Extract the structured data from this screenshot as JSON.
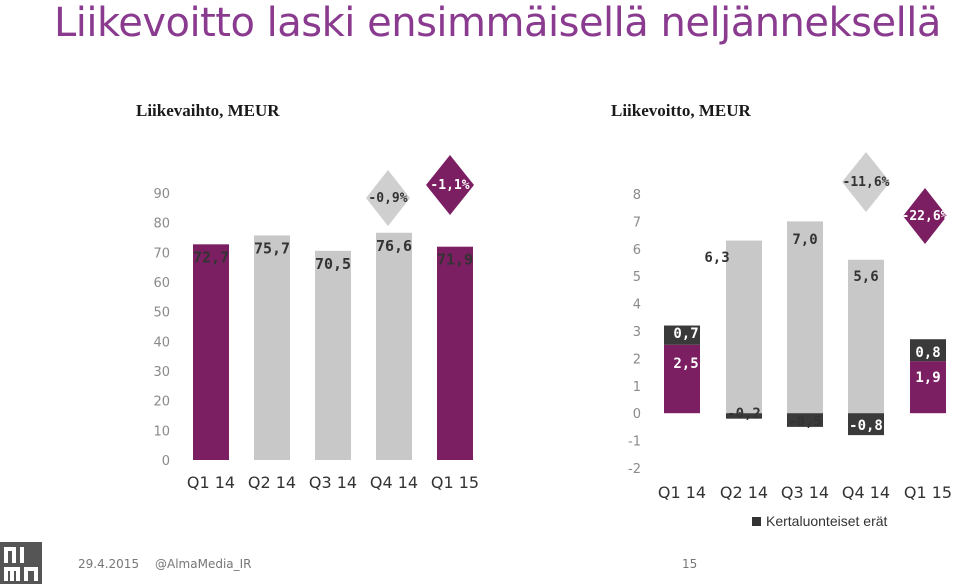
{
  "title": "Liikevoitto laski ensimmäisellä neljänneksellä",
  "colors": {
    "purple": "#7b1e62",
    "gray": "#c8c8c8",
    "dark": "#3a3a3a",
    "title": "#8a3b8f"
  },
  "footer": {
    "date": "29.4.2015",
    "twitter": "@AlmaMedia_IR",
    "page": "15"
  },
  "legend": {
    "label": "Kertaluonteiset erät"
  },
  "chart_data": [
    {
      "type": "bar",
      "title": "Liikevaihto, MEUR",
      "categories": [
        "Q1 14",
        "Q2 14",
        "Q3 14",
        "Q4 14",
        "Q1 15"
      ],
      "values": [
        72.7,
        75.7,
        70.5,
        76.6,
        71.9
      ],
      "value_labels": [
        "72,7",
        "75,7",
        "70,5",
        "76,6",
        "71,9"
      ],
      "bar_colors": [
        "purple",
        "gray",
        "gray",
        "gray",
        "purple"
      ],
      "ylim": [
        0,
        90
      ],
      "yticks": [
        0,
        10,
        20,
        30,
        40,
        50,
        60,
        70,
        80,
        90
      ],
      "grid": false,
      "callouts": [
        {
          "text": "-0,9%",
          "style": "gray"
        },
        {
          "text": "-1,1%",
          "style": "purple"
        }
      ]
    },
    {
      "type": "bar",
      "title": "Liikevoitto, MEUR",
      "categories": [
        "Q1 14",
        "Q2 14",
        "Q3 14",
        "Q4 14",
        "Q1 15"
      ],
      "series": [
        {
          "values": [
            2.5,
            6.3,
            7.0,
            5.6,
            1.9
          ],
          "labels": [
            "2,5",
            "6,3",
            "7,0",
            "5,6",
            "1,9"
          ],
          "bar_colors": [
            "purple",
            "gray",
            "gray",
            "gray",
            "purple"
          ]
        },
        {
          "name": "Kertaluonteiset erät",
          "values": [
            0.7,
            -0.2,
            -0.5,
            -0.8,
            0.8
          ],
          "labels": [
            "0,7",
            "-0,2",
            "-0,5",
            "-0,8",
            "0,8"
          ]
        }
      ],
      "ylim": [
        -2,
        8
      ],
      "yticks": [
        -2,
        -1,
        0,
        1,
        2,
        3,
        4,
        5,
        6,
        7,
        8
      ],
      "grid": false,
      "callouts": [
        {
          "text": "-11,6%",
          "style": "gray"
        },
        {
          "text": "-22,6%",
          "style": "purple"
        }
      ]
    }
  ]
}
